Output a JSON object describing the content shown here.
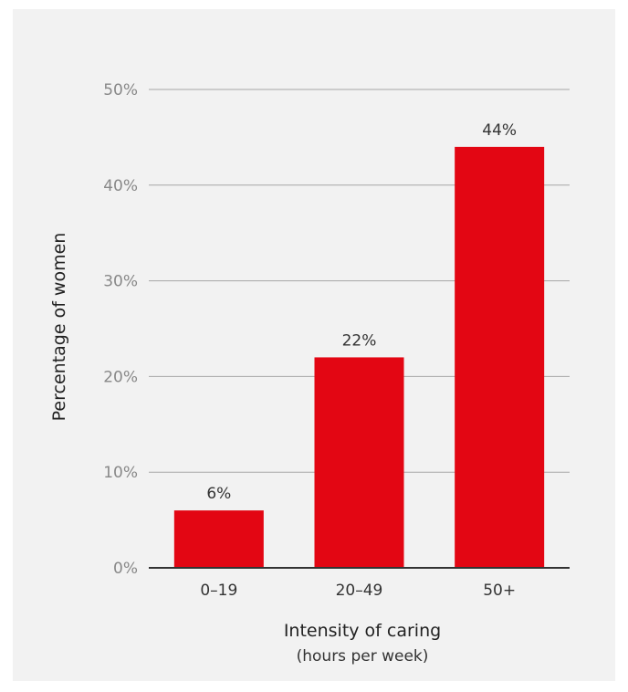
{
  "chart_data": {
    "type": "bar",
    "categories": [
      "0–19",
      "20–49",
      "50+"
    ],
    "values": [
      6,
      22,
      44
    ],
    "data_labels": [
      "6%",
      "22%",
      "44%"
    ],
    "xlabel": "Intensity of caring",
    "xlabel_sub": "(hours per week)",
    "ylabel": "Percentage of women",
    "ylim": [
      0,
      50
    ],
    "yticks": [
      0,
      10,
      20,
      30,
      40,
      50
    ],
    "ytick_labels": [
      "0%",
      "10%",
      "20%",
      "30%",
      "40%",
      "50%"
    ],
    "grid": true,
    "legend": "none",
    "bar_color": "#e30613",
    "background": "#f2f2f2"
  }
}
